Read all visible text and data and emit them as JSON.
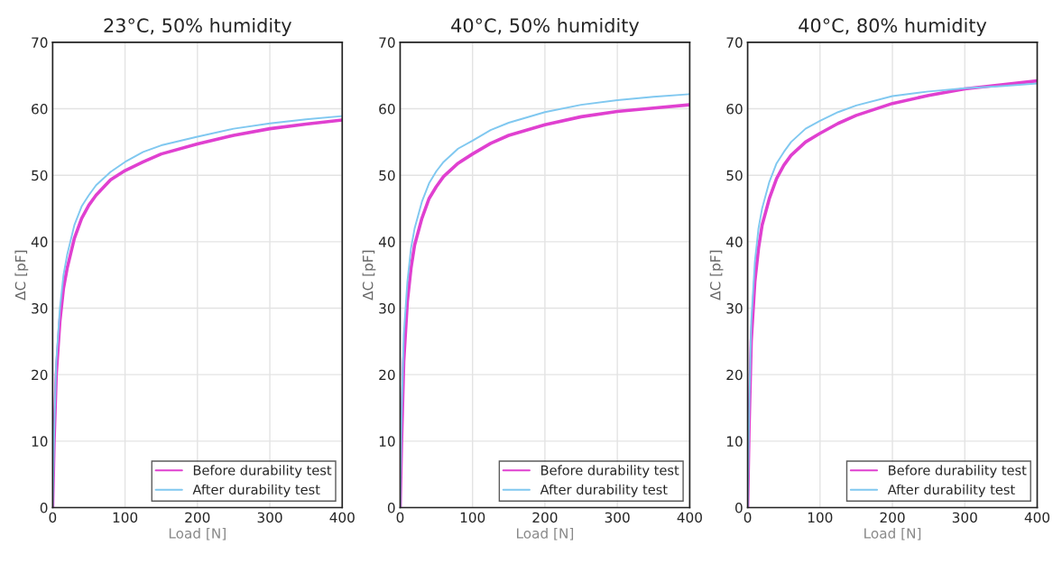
{
  "chart_data": [
    {
      "type": "line",
      "title": "23°C, 50% humidity",
      "xlabel": "Load [N]",
      "ylabel": "ΔC [pF]",
      "xlim": [
        0,
        400
      ],
      "ylim": [
        0,
        70
      ],
      "xticks": [
        0,
        100,
        200,
        300,
        400
      ],
      "yticks": [
        0,
        10,
        20,
        30,
        40,
        50,
        60,
        70
      ],
      "grid": true,
      "legend": "bottom right",
      "x": [
        0,
        2,
        5,
        10,
        15,
        20,
        30,
        40,
        50,
        60,
        80,
        100,
        125,
        150,
        200,
        250,
        300,
        350,
        400
      ],
      "series": [
        {
          "name": "Before durability test",
          "color": "#e040d0",
          "values": [
            0,
            10,
            20,
            28,
            33,
            36,
            40.5,
            43.5,
            45.5,
            47,
            49.3,
            50.7,
            52,
            53.2,
            54.7,
            56,
            57,
            57.7,
            58.3
          ]
        },
        {
          "name": "After durability test",
          "color": "#80c8f0",
          "values": [
            0,
            11,
            22,
            30,
            35,
            38,
            42.5,
            45.3,
            47,
            48.5,
            50.5,
            52,
            53.5,
            54.5,
            55.8,
            57,
            57.8,
            58.4,
            58.9
          ]
        }
      ]
    },
    {
      "type": "line",
      "title": "40°C, 50% humidity",
      "xlabel": "Load [N]",
      "ylabel": "ΔC [pF]",
      "xlim": [
        0,
        400
      ],
      "ylim": [
        0,
        70
      ],
      "xticks": [
        0,
        100,
        200,
        300,
        400
      ],
      "yticks": [
        0,
        10,
        20,
        30,
        40,
        50,
        60,
        70
      ],
      "grid": true,
      "legend": "bottom right",
      "x": [
        0,
        2,
        5,
        10,
        15,
        20,
        30,
        40,
        50,
        60,
        80,
        100,
        125,
        150,
        200,
        250,
        300,
        350,
        400
      ],
      "series": [
        {
          "name": "Before durability test",
          "color": "#e040d0",
          "values": [
            0,
            10,
            22,
            31,
            36,
            39.5,
            43.5,
            46.5,
            48.3,
            49.8,
            51.8,
            53.2,
            54.8,
            56,
            57.6,
            58.8,
            59.6,
            60.1,
            60.6
          ]
        },
        {
          "name": "After durability test",
          "color": "#80c8f0",
          "values": [
            0,
            14,
            26,
            34,
            39,
            42,
            46,
            48.8,
            50.6,
            52,
            54,
            55.2,
            56.8,
            57.9,
            59.5,
            60.6,
            61.3,
            61.8,
            62.2
          ]
        }
      ]
    },
    {
      "type": "line",
      "title": "40°C, 80% humidity",
      "xlabel": "Load [N]",
      "ylabel": "ΔC [pF]",
      "xlim": [
        0,
        400
      ],
      "ylim": [
        0,
        70
      ],
      "xticks": [
        0,
        100,
        200,
        300,
        400
      ],
      "yticks": [
        0,
        10,
        20,
        30,
        40,
        50,
        60,
        70
      ],
      "grid": true,
      "legend": "bottom right",
      "x": [
        0,
        2,
        5,
        10,
        15,
        20,
        30,
        40,
        50,
        60,
        80,
        100,
        125,
        150,
        200,
        250,
        300,
        350,
        400
      ],
      "series": [
        {
          "name": "Before durability test",
          "color": "#e040d0",
          "values": [
            0,
            12,
            25,
            34,
            39,
            42.5,
            46.5,
            49.5,
            51.5,
            53,
            55,
            56.3,
            57.8,
            59,
            60.8,
            62,
            63,
            63.6,
            64.2
          ]
        },
        {
          "name": "After durability test",
          "color": "#80c8f0",
          "values": [
            0,
            14,
            28,
            37,
            42,
            45,
            49,
            51.8,
            53.5,
            55,
            57,
            58.2,
            59.5,
            60.5,
            61.9,
            62.6,
            63.1,
            63.4,
            63.8
          ]
        }
      ]
    }
  ]
}
